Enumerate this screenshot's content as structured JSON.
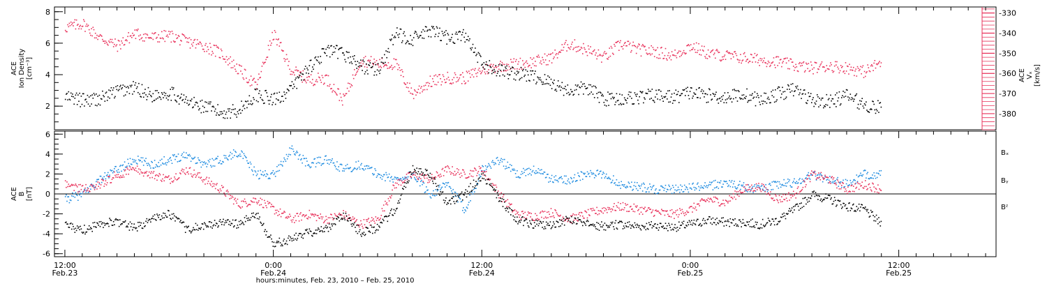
{
  "colors": {
    "density": "#000000",
    "vx": "#e8305a",
    "bx": "#000000",
    "by": "#1f8ce0",
    "bz": "#e8305a",
    "axis": "#000000"
  },
  "top_panel": {
    "left_label_lines": [
      "ACE",
      "Ion Density",
      "[cm⁻³]"
    ],
    "right_label_lines": [
      "ACE",
      "Vₓ",
      "[km/s]"
    ]
  },
  "bottom_panel": {
    "left_label_lines": [
      "ACE",
      "B",
      "[nT]"
    ]
  },
  "x_axis": {
    "title": "hours:minutes, Feb. 23, 2010 – Feb. 25, 2010",
    "ticks": [
      {
        "time": "12:00",
        "date": "Feb.23",
        "hours": 0
      },
      {
        "time": "0:00",
        "date": "Feb.24",
        "hours": 12
      },
      {
        "time": "12:00",
        "date": "Feb.24",
        "hours": 24
      },
      {
        "time": "0:00",
        "date": "Feb.25",
        "hours": 36
      },
      {
        "time": "12:00",
        "date": "Feb.25",
        "hours": 48
      }
    ],
    "range_hours": [
      -0.6,
      53.6
    ],
    "minor_step_hours": 1
  },
  "chart_data": [
    {
      "type": "scatter",
      "panel": "top",
      "xlabel": "hours:minutes, Feb. 23, 2010 – Feb. 25, 2010",
      "y_left": {
        "label": "ACE Ion Density [cm⁻³]",
        "range": [
          0.5,
          8.3
        ],
        "ticks": [
          2,
          4,
          6,
          8
        ]
      },
      "y_right": {
        "label": "ACE Vx [km/s]",
        "range": [
          -388,
          -327
        ],
        "ticks": [
          -330,
          -340,
          -350,
          -360,
          -370,
          -380
        ]
      },
      "series": [
        {
          "name": "Ion Density",
          "axis": "left",
          "color": "#000000",
          "x_hours": [
            0,
            1,
            2,
            3,
            4,
            5,
            6,
            7,
            8,
            9,
            10,
            11,
            12,
            13,
            14,
            15,
            16,
            17,
            18,
            19,
            20,
            21,
            22,
            23,
            24,
            25,
            26,
            27,
            28,
            29,
            30,
            31,
            32,
            33,
            34,
            35,
            36,
            37,
            38,
            39,
            40,
            41,
            42,
            43,
            44,
            45,
            46,
            47
          ],
          "y": [
            2.6,
            2.4,
            2.5,
            3.0,
            3.2,
            2.7,
            2.9,
            2.3,
            2.0,
            1.6,
            1.8,
            2.8,
            2.4,
            3.1,
            4.5,
            5.5,
            5.4,
            4.6,
            4.3,
            6.6,
            6.3,
            6.8,
            6.4,
            6.5,
            4.6,
            4.3,
            4.1,
            3.9,
            3.5,
            3.0,
            3.2,
            2.5,
            2.5,
            2.6,
            2.7,
            2.6,
            2.9,
            2.7,
            2.6,
            2.8,
            2.4,
            2.8,
            3.1,
            2.4,
            2.3,
            2.7,
            2.1,
            1.9
          ]
        },
        {
          "name": "Vx",
          "axis": "right",
          "color": "#e8305a",
          "x_hours": [
            0,
            1,
            2,
            3,
            4,
            5,
            6,
            7,
            8,
            9,
            10,
            11,
            12,
            13,
            14,
            15,
            16,
            17,
            18,
            19,
            20,
            21,
            22,
            23,
            24,
            25,
            26,
            27,
            28,
            29,
            30,
            31,
            32,
            33,
            34,
            35,
            36,
            37,
            38,
            39,
            40,
            41,
            42,
            43,
            44,
            45,
            46,
            47
          ],
          "y": [
            -337,
            -335,
            -342,
            -346,
            -340,
            -342,
            -341,
            -344,
            -346,
            -350,
            -358,
            -366,
            -340,
            -358,
            -363,
            -362,
            -373,
            -353,
            -355,
            -355,
            -370,
            -364,
            -362,
            -362,
            -358,
            -356,
            -355,
            -354,
            -352,
            -345,
            -348,
            -352,
            -345,
            -348,
            -349,
            -351,
            -346,
            -350,
            -351,
            -352,
            -353,
            -354,
            -356,
            -357,
            -356,
            -357,
            -359,
            -354
          ]
        }
      ]
    },
    {
      "type": "scatter",
      "panel": "bottom",
      "xlabel": "hours:minutes, Feb. 23, 2010 – Feb. 25, 2010",
      "ylabel": "ACE B [nT]",
      "ylim": [
        -6.3,
        6.3
      ],
      "y_ticks": [
        -6,
        -4,
        -2,
        0,
        2,
        4,
        6
      ],
      "series": [
        {
          "name": "Bₓ",
          "color": "#000000",
          "x_hours": [
            0,
            1,
            2,
            3,
            4,
            5,
            6,
            7,
            8,
            9,
            10,
            11,
            12,
            13,
            14,
            15,
            16,
            17,
            18,
            19,
            20,
            21,
            22,
            23,
            24,
            25,
            26,
            27,
            28,
            29,
            30,
            31,
            32,
            33,
            34,
            35,
            36,
            37,
            38,
            39,
            40,
            41,
            42,
            43,
            44,
            45,
            46,
            47
          ],
          "y": [
            -3.2,
            -3.6,
            -3.0,
            -2.7,
            -3.4,
            -2.5,
            -2.0,
            -3.5,
            -3.2,
            -2.8,
            -3.0,
            -2.0,
            -5.0,
            -4.5,
            -3.8,
            -3.5,
            -2.0,
            -3.8,
            -3.3,
            -1.5,
            2.6,
            2.0,
            -1.0,
            0.0,
            2.0,
            -0.5,
            -2.5,
            -3.0,
            -3.2,
            -2.5,
            -3.0,
            -3.2,
            -3.0,
            -3.2,
            -3.1,
            -3.3,
            -3.0,
            -2.6,
            -2.8,
            -2.8,
            -3.0,
            -2.6,
            -1.5,
            0.0,
            -0.5,
            -1.2,
            -1.5,
            -3.0
          ]
        },
        {
          "name": "Bᵧ",
          "color": "#1f8ce0",
          "x_hours": [
            0,
            1,
            2,
            3,
            4,
            5,
            6,
            7,
            8,
            9,
            10,
            11,
            12,
            13,
            14,
            15,
            16,
            17,
            18,
            19,
            20,
            21,
            22,
            23,
            24,
            25,
            26,
            27,
            28,
            29,
            30,
            31,
            32,
            33,
            34,
            35,
            36,
            37,
            38,
            39,
            40,
            41,
            42,
            43,
            44,
            45,
            46,
            47
          ],
          "y": [
            -0.5,
            0.0,
            1.5,
            2.5,
            3.5,
            3.0,
            3.5,
            4.0,
            3.0,
            3.5,
            4.3,
            2.0,
            2.0,
            4.5,
            3.0,
            3.5,
            2.5,
            3.0,
            2.0,
            1.5,
            2.0,
            0.0,
            1.0,
            -1.5,
            2.5,
            3.5,
            2.0,
            2.5,
            1.5,
            1.5,
            2.0,
            2.0,
            1.0,
            0.8,
            0.5,
            0.5,
            0.7,
            0.8,
            1.2,
            0.8,
            0.5,
            1.0,
            1.2,
            2.0,
            1.5,
            1.0,
            2.0,
            2.0
          ]
        },
        {
          "name": "Bᶻ",
          "color": "#e8305a",
          "x_hours": [
            0,
            1,
            2,
            3,
            4,
            5,
            6,
            7,
            8,
            9,
            10,
            11,
            12,
            13,
            14,
            15,
            16,
            17,
            18,
            19,
            20,
            21,
            22,
            23,
            24,
            25,
            26,
            27,
            28,
            29,
            30,
            31,
            32,
            33,
            34,
            35,
            36,
            37,
            38,
            39,
            40,
            41,
            42,
            43,
            44,
            45,
            46,
            47
          ],
          "y": [
            1.0,
            0.5,
            1.0,
            2.0,
            2.5,
            2.0,
            1.5,
            2.5,
            1.5,
            0.5,
            -1.0,
            -0.5,
            -1.5,
            -2.5,
            -2.0,
            -2.5,
            -2.0,
            -3.0,
            -2.5,
            1.0,
            2.0,
            1.5,
            2.5,
            2.0,
            2.5,
            0.0,
            -2.0,
            -2.2,
            -1.8,
            -2.5,
            -2.0,
            -1.5,
            -1.2,
            -1.5,
            -1.8,
            -2.0,
            -1.5,
            -0.5,
            -0.8,
            0.5,
            0.8,
            -0.5,
            0.0,
            2.0,
            1.5,
            0.5,
            1.0,
            0.5
          ]
        }
      ]
    }
  ]
}
